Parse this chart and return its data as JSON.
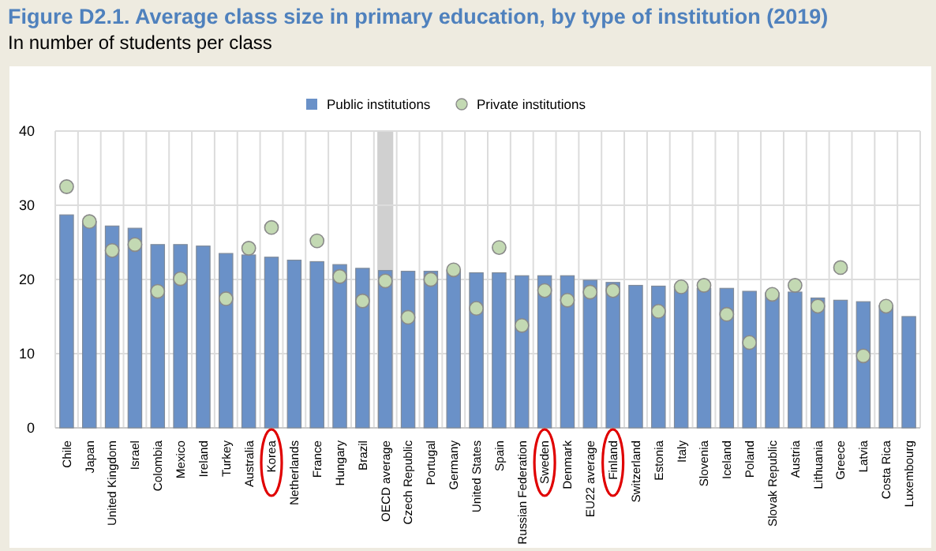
{
  "chart_data": {
    "type": "bar",
    "title": "Figure D2.1. Average class size in primary education, by type of institution (2019)",
    "subtitle": "In number of students per class",
    "categories": [
      "Chile",
      "Japan",
      "United Kingdom",
      "Israel",
      "Colombia",
      "Mexico",
      "Ireland",
      "Turkey",
      "Australia",
      "Korea",
      "Netherlands",
      "France",
      "Hungary",
      "Brazil",
      "OECD average",
      "Czech Republic",
      "Portugal",
      "Germany",
      "United States",
      "Spain",
      "Russian Federation",
      "Sweden",
      "Denmark",
      "EU22 average",
      "Finland",
      "Switzerland",
      "Estonia",
      "Italy",
      "Slovenia",
      "Iceland",
      "Poland",
      "Slovak Republic",
      "Austria",
      "Lithuania",
      "Greece",
      "Latvia",
      "Costa Rica",
      "Luxembourg"
    ],
    "series": [
      {
        "name": "Public institutions",
        "color": "#6a91c8",
        "values": [
          28.7,
          27.8,
          27.2,
          26.9,
          24.7,
          24.7,
          24.5,
          23.5,
          23.3,
          23.0,
          22.6,
          22.4,
          22.0,
          21.5,
          21.2,
          21.1,
          21.1,
          21.2,
          20.9,
          20.9,
          20.5,
          20.5,
          20.5,
          19.9,
          19.6,
          19.2,
          19.1,
          19.0,
          18.8,
          18.8,
          18.4,
          18.2,
          18.3,
          17.5,
          17.2,
          17.0,
          16.5,
          15.0
        ]
      },
      {
        "name": "Private institutions",
        "type": "scatter",
        "color": "#c3d9b3",
        "values": [
          32.5,
          27.8,
          23.9,
          24.7,
          18.4,
          20.1,
          null,
          17.4,
          24.2,
          27.0,
          null,
          25.2,
          20.4,
          17.1,
          19.8,
          14.9,
          20.0,
          21.3,
          16.1,
          24.3,
          13.8,
          18.5,
          17.2,
          18.3,
          18.5,
          null,
          15.7,
          19.0,
          19.2,
          15.3,
          11.5,
          18.0,
          19.2,
          16.4,
          21.6,
          9.7,
          16.4,
          null
        ]
      }
    ],
    "ylim": [
      0,
      40
    ],
    "yticks": [
      0,
      10,
      20,
      30,
      40
    ],
    "grid": true,
    "legend": "top",
    "marker": "circle",
    "bands": [
      {
        "axis": "x",
        "from": "OECD average",
        "to": "OECD average",
        "color": "#d0d0d0"
      }
    ]
  }
}
